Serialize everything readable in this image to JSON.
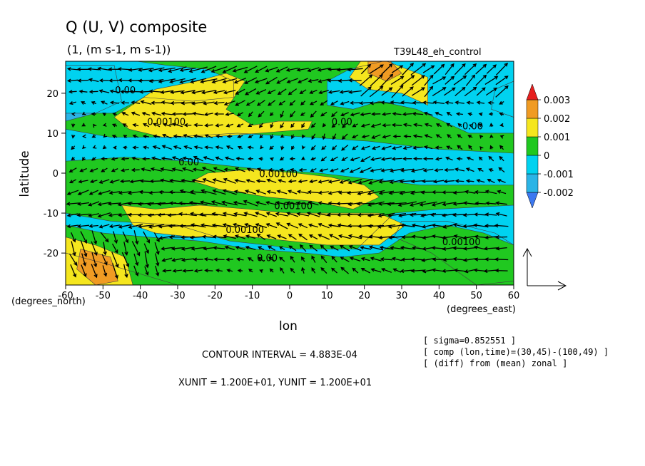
{
  "chart_data": {
    "type": "heatmap",
    "title": "Q (U, V) composite",
    "subtitle": "(1, (m s-1, m s-1))",
    "run_label": "T39L48_eh_control",
    "xlabel": "lon",
    "ylabel": "latitude",
    "x_unit_label": "(degrees_east)",
    "y_unit_label": "(degrees_north)",
    "xlim": [
      -60,
      60
    ],
    "ylim": [
      -28,
      28
    ],
    "x_ticks": [
      "-60",
      "-50",
      "-40",
      "-30",
      "-20",
      "-10",
      "0",
      "10",
      "20",
      "30",
      "40",
      "50",
      "60"
    ],
    "y_ticks": [
      "-20",
      "-10",
      "0",
      "10",
      "20"
    ],
    "colorbar": {
      "labels": [
        "0.003",
        "0.002",
        "0.001",
        "0",
        "-0.001",
        "-0.002"
      ],
      "levels": [
        -0.0025,
        -0.0015,
        -0.0005,
        0.0005,
        0.0015,
        0.0025
      ],
      "colors": [
        "#3c78f0",
        "#2bb4e6",
        "#00d2f0",
        "#20c820",
        "#f5e61e",
        "#f09b23",
        "#e61e1e"
      ]
    },
    "contour_labels": [
      {
        "text": "0.00",
        "lon": -44,
        "lat": 20
      },
      {
        "text": "0.00100",
        "lon": -33,
        "lat": 12
      },
      {
        "text": "0.00",
        "lon": 14,
        "lat": 12
      },
      {
        "text": "0.00",
        "lon": 49,
        "lat": 11
      },
      {
        "text": "0.00",
        "lon": -27,
        "lat": 2
      },
      {
        "text": "0.00100",
        "lon": -3,
        "lat": -1
      },
      {
        "text": "0.00100",
        "lon": 1,
        "lat": -9
      },
      {
        "text": "0.00100",
        "lon": -12,
        "lat": -15
      },
      {
        "text": "0.00",
        "lon": -6,
        "lat": -22
      },
      {
        "text": "0.00100",
        "lon": 46,
        "lat": -18
      }
    ],
    "field_regions": [
      {
        "value": -0.0015,
        "poly": [
          [
            -60,
            27
          ],
          [
            -47,
            27
          ],
          [
            -45,
            18
          ],
          [
            -52,
            15
          ],
          [
            -60,
            13
          ]
        ]
      },
      {
        "value": -0.0015,
        "poly": [
          [
            55,
            21
          ],
          [
            60,
            23
          ],
          [
            60,
            14
          ],
          [
            54,
            16
          ]
        ]
      },
      {
        "value": -0.0015,
        "poly": [
          [
            30,
            -12
          ],
          [
            42,
            -12
          ],
          [
            55,
            -15
          ],
          [
            60,
            -18
          ],
          [
            60,
            -27
          ],
          [
            50,
            -28
          ],
          [
            38,
            -20
          ],
          [
            28,
            -16
          ]
        ]
      },
      {
        "value": -0.0005,
        "poly": [
          [
            -60,
            28
          ],
          [
            -41,
            28
          ],
          [
            -33,
            27
          ],
          [
            -22,
            26
          ],
          [
            -15,
            23
          ],
          [
            -15,
            19
          ],
          [
            -26,
            18
          ],
          [
            -39,
            19
          ],
          [
            -47,
            15
          ],
          [
            -60,
            15
          ]
        ]
      },
      {
        "value": -0.0005,
        "poly": [
          [
            25,
            28
          ],
          [
            60,
            28
          ],
          [
            60,
            10
          ],
          [
            48,
            10
          ],
          [
            34,
            16
          ],
          [
            24,
            18
          ],
          [
            17,
            16
          ],
          [
            10,
            17
          ],
          [
            10,
            23
          ],
          [
            16,
            26
          ]
        ]
      },
      {
        "value": -0.0005,
        "poly": [
          [
            -60,
            11
          ],
          [
            -48,
            9
          ],
          [
            -32,
            9
          ],
          [
            -14,
            10
          ],
          [
            5,
            9
          ],
          [
            21,
            8
          ],
          [
            40,
            6
          ],
          [
            60,
            5
          ],
          [
            60,
            -3
          ],
          [
            35,
            -3
          ],
          [
            8,
            0
          ],
          [
            -8,
            1
          ],
          [
            -28,
            3
          ],
          [
            -44,
            4
          ],
          [
            -60,
            3
          ]
        ]
      },
      {
        "value": -0.0005,
        "poly": [
          [
            -60,
            -10
          ],
          [
            -48,
            -12
          ],
          [
            -30,
            -13
          ],
          [
            -16,
            -17
          ],
          [
            -6,
            -18
          ],
          [
            2,
            -19
          ],
          [
            9,
            -19
          ],
          [
            18,
            -19
          ],
          [
            28,
            -10
          ],
          [
            40,
            -9
          ],
          [
            60,
            -8
          ],
          [
            60,
            -28
          ],
          [
            -30,
            -28
          ],
          [
            -48,
            -23
          ],
          [
            -60,
            -20
          ]
        ]
      },
      {
        "value": 0.0005,
        "poly": [
          [
            -60,
            -13
          ],
          [
            -50,
            -15
          ],
          [
            -38,
            -16
          ],
          [
            -24,
            -17
          ],
          [
            -10,
            -19
          ],
          [
            4,
            -20
          ],
          [
            14,
            -21
          ],
          [
            24,
            -20
          ],
          [
            32,
            -15
          ],
          [
            42,
            -13
          ],
          [
            52,
            -15
          ],
          [
            60,
            -18
          ],
          [
            60,
            -28
          ],
          [
            -60,
            -28
          ]
        ]
      },
      {
        "value": 0.0015,
        "poly": [
          [
            -36,
            21
          ],
          [
            -25,
            23
          ],
          [
            -17,
            25
          ],
          [
            -12,
            23
          ],
          [
            -17,
            16
          ],
          [
            -10,
            12
          ],
          [
            -3,
            13
          ],
          [
            6,
            13
          ],
          [
            5,
            11
          ],
          [
            -8,
            10
          ],
          [
            -22,
            9
          ],
          [
            -34,
            9
          ],
          [
            -43,
            11
          ],
          [
            -47,
            14
          ]
        ]
      },
      {
        "value": 0.0015,
        "poly": [
          [
            19,
            28
          ],
          [
            26,
            28
          ],
          [
            37,
            24
          ],
          [
            37,
            17
          ],
          [
            30,
            20
          ],
          [
            21,
            21
          ],
          [
            16,
            24
          ]
        ]
      },
      {
        "value": 0.0015,
        "poly": [
          [
            -22,
            0
          ],
          [
            -10,
            1
          ],
          [
            2,
            0
          ],
          [
            11,
            -1
          ],
          [
            20,
            -3
          ],
          [
            24,
            -6
          ],
          [
            17,
            -9
          ],
          [
            6,
            -7
          ],
          [
            -6,
            -6
          ],
          [
            -19,
            -4
          ],
          [
            -26,
            -2
          ]
        ]
      },
      {
        "value": 0.0015,
        "poly": [
          [
            -45,
            -8
          ],
          [
            -36,
            -9
          ],
          [
            -24,
            -8
          ],
          [
            -11,
            -9
          ],
          [
            0,
            -10
          ],
          [
            13,
            -10
          ],
          [
            24,
            -10
          ],
          [
            31,
            -13
          ],
          [
            24,
            -18
          ],
          [
            10,
            -18
          ],
          [
            0,
            -17
          ],
          [
            -10,
            -16
          ],
          [
            -26,
            -16
          ],
          [
            -36,
            -15
          ],
          [
            -42,
            -13
          ]
        ]
      },
      {
        "value": 0.0015,
        "poly": [
          [
            -60,
            -16
          ],
          [
            -52,
            -18
          ],
          [
            -44,
            -21
          ],
          [
            -42,
            -28
          ],
          [
            -60,
            -28
          ]
        ]
      },
      {
        "value": 0.0025,
        "poly": [
          [
            21,
            28
          ],
          [
            27,
            28
          ],
          [
            30,
            25
          ],
          [
            26,
            23
          ],
          [
            21,
            25
          ]
        ]
      },
      {
        "value": 0.0025,
        "poly": [
          [
            -56,
            -19
          ],
          [
            -48,
            -21
          ],
          [
            -46,
            -27
          ],
          [
            -52,
            -28
          ],
          [
            -57,
            -24
          ]
        ]
      }
    ],
    "vectors": {
      "reference_arrow_label": "",
      "note": "wind-vector field drawn over the shaded contour map"
    },
    "annotations": {
      "contour_interval": "CONTOUR INTERVAL = 4.883E-04",
      "units": "XUNIT = 1.200E+01, YUNIT = 1.200E+01",
      "info_lines": [
        "[ sigma=0.852551 ]",
        "[ comp (lon,time)=(30,45)-(100,49) ]",
        "[ (diff) from (mean) zonal ]"
      ]
    }
  }
}
